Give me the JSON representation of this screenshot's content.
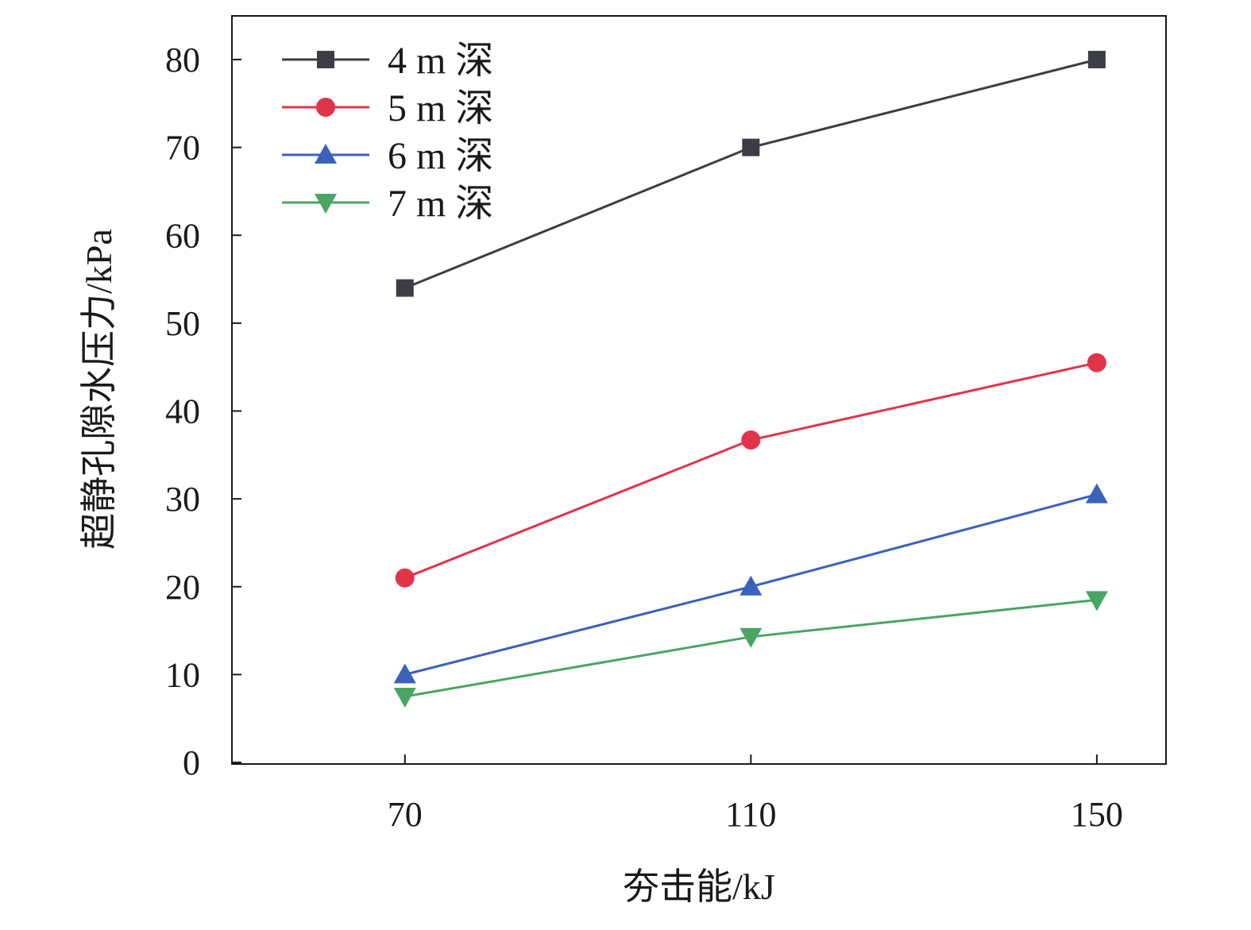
{
  "chart_data": {
    "type": "line",
    "title": "",
    "xlabel": "夯击能/kJ",
    "ylabel": "超静孔隙水压力/kPa",
    "x": [
      70,
      110,
      150
    ],
    "x_tick_labels": [
      "70",
      "110",
      "150"
    ],
    "xlim": [
      50,
      158
    ],
    "ylim": [
      0,
      80
    ],
    "y_ticks": [
      0,
      10,
      20,
      30,
      40,
      50,
      60,
      70,
      80
    ],
    "y_tick_labels": [
      "0",
      "10",
      "20",
      "30",
      "40",
      "50",
      "60",
      "70",
      "80"
    ],
    "grid": false,
    "legend_position": "top-left",
    "series": [
      {
        "name": "4 m 深",
        "values": [
          54,
          70,
          80
        ],
        "color": "#3d3d45",
        "marker": "square"
      },
      {
        "name": "5 m 深",
        "values": [
          21,
          36.7,
          45.5
        ],
        "color": "#e0344a",
        "marker": "circle"
      },
      {
        "name": "6 m 深",
        "values": [
          10,
          20,
          30.5
        ],
        "color": "#3a62bb",
        "marker": "triangle-up"
      },
      {
        "name": "7 m 深",
        "values": [
          7.5,
          14.3,
          18.5
        ],
        "color": "#4aa564",
        "marker": "triangle-down"
      }
    ]
  }
}
